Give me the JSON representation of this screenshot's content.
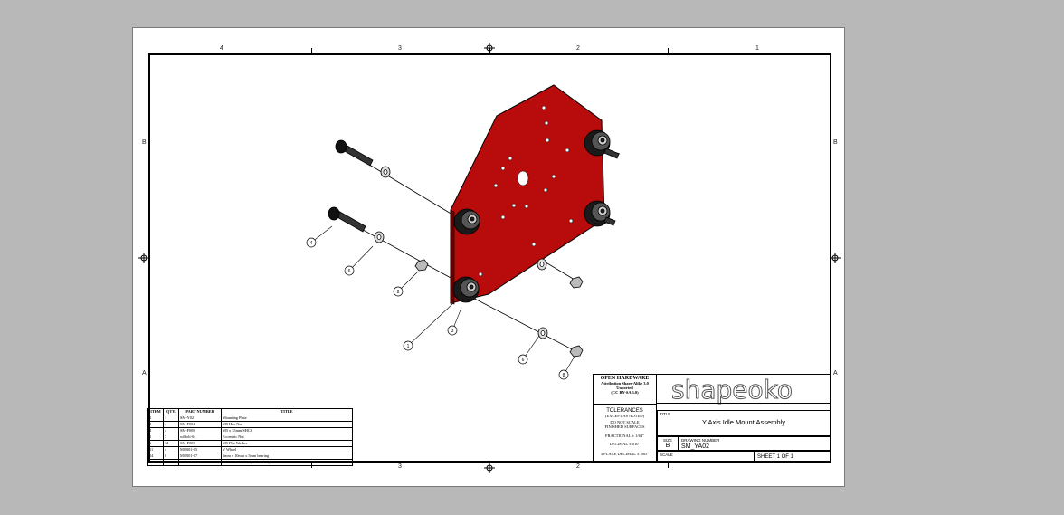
{
  "zones": {
    "top": [
      "4",
      "3",
      "2",
      "1"
    ],
    "bottom": [
      "3",
      "2"
    ],
    "left": [
      "B",
      "A"
    ],
    "right": [
      "B",
      "A"
    ]
  },
  "balloons": [
    "4",
    "6",
    "8",
    "1",
    "3",
    "6",
    "8"
  ],
  "bom": {
    "headers": [
      "ITEM",
      "QTY.",
      "PART NUMBER",
      "TITLE"
    ],
    "rows": [
      [
        "1",
        "1",
        "SM-Y02",
        "Mounting Plate"
      ],
      [
        "2",
        "4",
        "SM-F004",
        "M5 Hex Nut"
      ],
      [
        "4",
        "4",
        "SM-F008",
        "M5 x 35mm SHCS"
      ],
      [
        "5",
        "7",
        "wiBolt-04",
        "Eccentric Nut"
      ],
      [
        "6",
        "12",
        "SM-F003",
        "M5 Flat Washer"
      ],
      [
        "11",
        "4",
        "MSR01-05",
        "V Wheel"
      ],
      [
        "14",
        "8",
        "MSR01-07",
        "6mm x 10mm x 5mm bearing"
      ],
      [
        "15",
        "4",
        "MSR01-08",
        "Precision Washer (1mm thick)"
      ]
    ]
  },
  "titleblock": {
    "open_hw_title": "OPEN HARDWARE",
    "open_hw_line1": "Attribution Share-Alike 3.0",
    "open_hw_line2": "Unported",
    "open_hw_line3": "(CC BY-SA 3.0)",
    "tol_title": "TOLERANCES",
    "tol_sub": "(EXCEPT AS NOTED)",
    "tol_l1": "DO NOT SCALE",
    "tol_l2": "FINISHED SURFACES",
    "tol_l3": "FRACTIONAL ± 1/64\"",
    "tol_l4": "DECIMAL ±.010\"",
    "tol_l5": "3 PLACE DECIMAL ± .005\"",
    "logo": "shapeoko",
    "title_label": "TITLE",
    "title": "Y Axis Idle Mount Assembly",
    "size_label": "SIZE",
    "size": "B",
    "dwg_label": "DRAWING NUMBER",
    "dwg_number": "SM_YA02",
    "scale_label": "SCALE",
    "sheet": "SHEET 1 OF 1"
  },
  "colors": {
    "plate": "#b80c0c",
    "sheet_bg": "#ffffff",
    "backdrop": "#b8b8b8"
  }
}
